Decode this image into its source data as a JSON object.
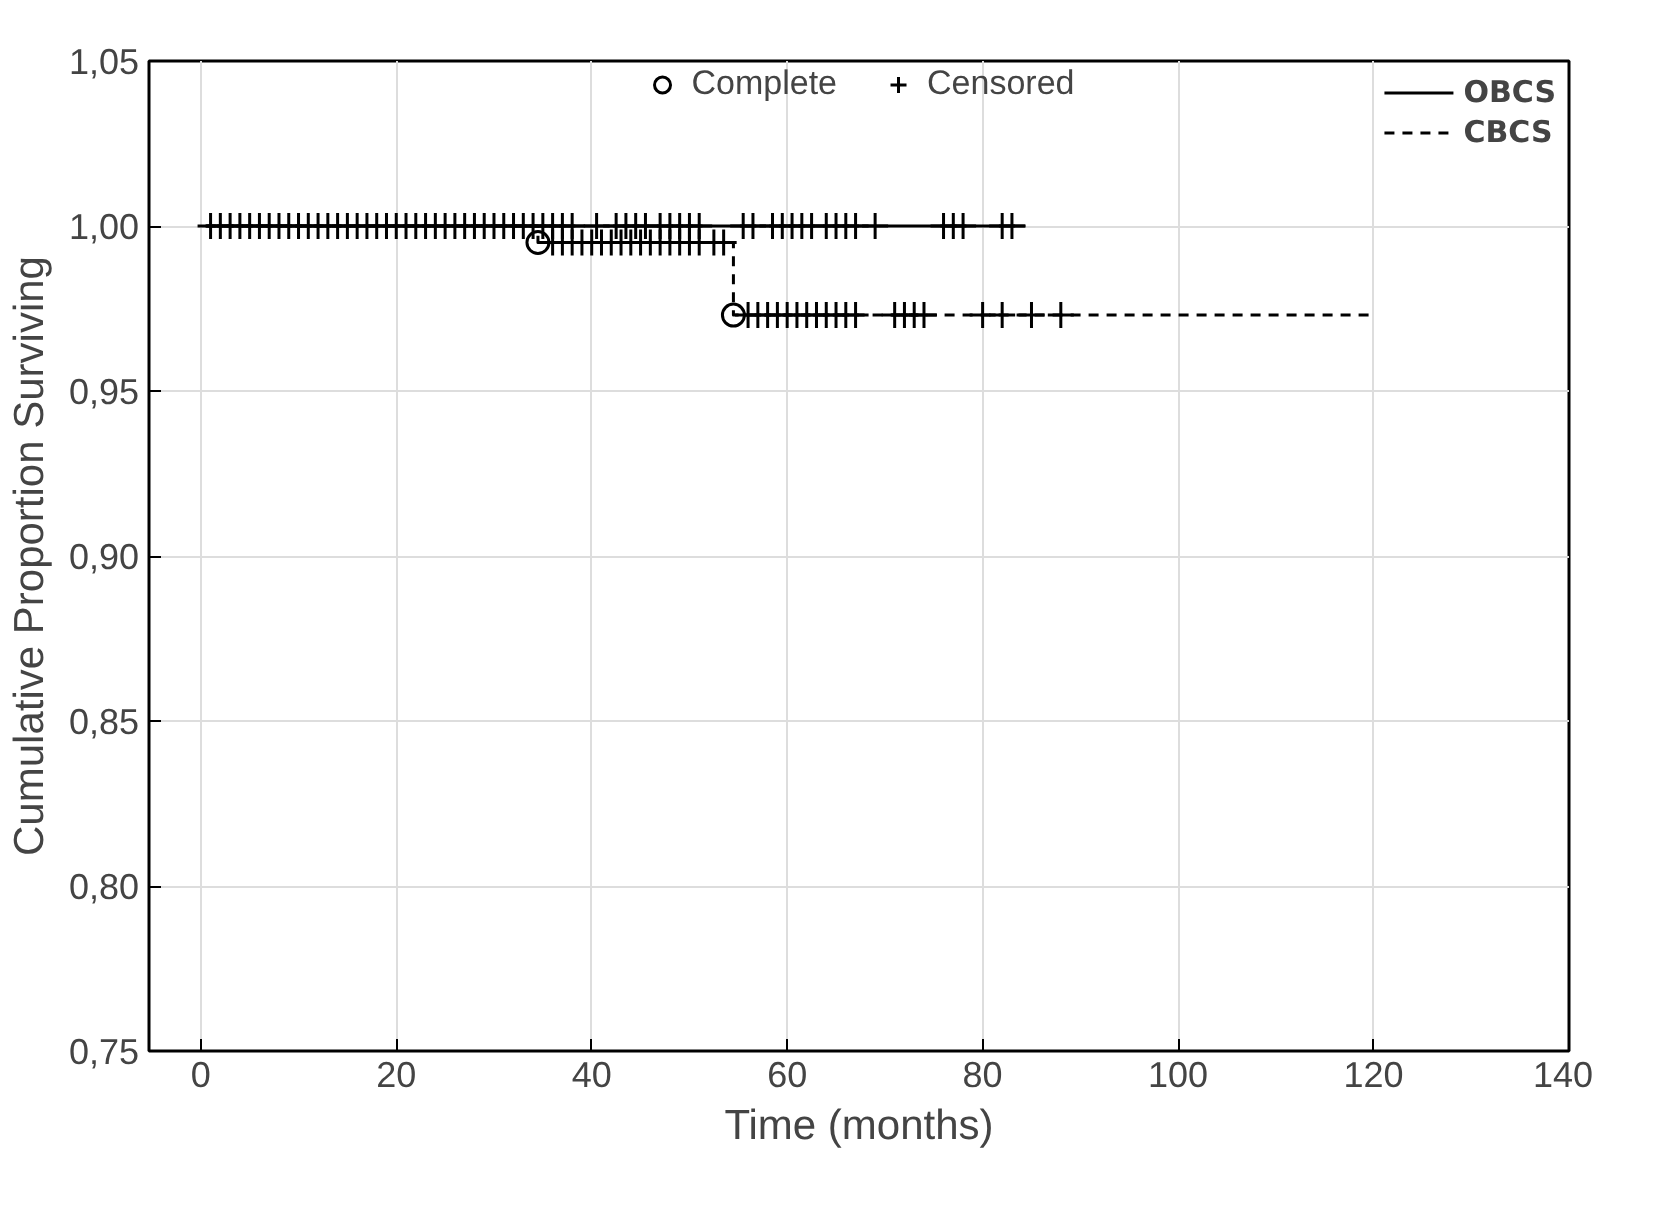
{
  "chart_data": {
    "type": "step",
    "xlabel": "Time (months)",
    "ylabel": "Cumulative Proportion Surviving",
    "xlim": [
      -5.3,
      140
    ],
    "xticks": [
      0,
      20,
      40,
      60,
      80,
      100,
      120,
      140
    ],
    "ylim": [
      0.75,
      1.05
    ],
    "yticks": [
      {
        "value": 0.75,
        "label": "0,75"
      },
      {
        "value": 0.8,
        "label": "0,80"
      },
      {
        "value": 0.85,
        "label": "0,85"
      },
      {
        "value": 0.9,
        "label": "0,90"
      },
      {
        "value": 0.95,
        "label": "0,95"
      },
      {
        "value": 1.0,
        "label": "1,00"
      },
      {
        "value": 1.05,
        "label": "1,05"
      }
    ],
    "grid": true,
    "legend": "top right",
    "series": [
      {
        "name": "OBCS",
        "color": "#000000",
        "line_style": "solid",
        "x": [
          0.5,
          84.4
        ],
        "values": [
          1.0,
          1.0
        ]
      },
      {
        "name": "CBCS",
        "color": "#000000",
        "line_style": "dashed",
        "x": [
          0.5,
          34.5,
          54.5,
          120
        ],
        "values": [
          1.0,
          0.995,
          0.973,
          0.973
        ]
      },
      {
        "name": "Complete",
        "type": "scatter",
        "marker": "circle",
        "color": "#000000",
        "x": [
          34.5,
          54.5
        ],
        "values": [
          0.995,
          0.973
        ]
      },
      {
        "name": "Censored",
        "type": "scatter",
        "marker": "cross",
        "color": "#000000",
        "x": [
          1,
          2,
          3,
          4,
          5,
          6,
          7,
          8,
          9,
          10,
          11,
          12,
          13,
          14,
          15,
          16,
          17,
          18,
          19,
          20,
          21,
          22,
          23,
          24,
          25,
          26,
          27,
          28,
          29,
          30,
          31,
          32,
          33,
          34,
          35,
          36,
          37,
          38,
          40.5,
          42.5,
          43.5,
          44.5,
          45.5,
          47,
          48,
          49,
          50,
          51,
          55.5,
          56.5,
          58.5,
          59.5,
          60.5,
          61.5,
          62.5,
          64,
          65,
          66,
          67,
          69,
          76,
          77,
          78,
          82,
          83,
          36,
          37,
          38,
          39,
          40,
          41,
          42,
          43,
          44,
          45,
          46,
          47,
          48,
          49,
          50,
          51,
          52.5,
          53.5,
          56,
          57,
          58,
          59,
          60,
          61,
          62,
          63,
          64,
          65,
          66,
          67,
          71,
          72,
          73,
          74,
          80,
          82,
          85,
          88
        ],
        "values": [
          1.0,
          1.0,
          1.0,
          1.0,
          1.0,
          1.0,
          1.0,
          1.0,
          1.0,
          1.0,
          1.0,
          1.0,
          1.0,
          1.0,
          1.0,
          1.0,
          1.0,
          1.0,
          1.0,
          1.0,
          1.0,
          1.0,
          1.0,
          1.0,
          1.0,
          1.0,
          1.0,
          1.0,
          1.0,
          1.0,
          1.0,
          1.0,
          1.0,
          1.0,
          1.0,
          1.0,
          1.0,
          1.0,
          1.0,
          1.0,
          1.0,
          1.0,
          1.0,
          1.0,
          1.0,
          1.0,
          1.0,
          1.0,
          1.0,
          1.0,
          1.0,
          1.0,
          1.0,
          1.0,
          1.0,
          1.0,
          1.0,
          1.0,
          1.0,
          1.0,
          1.0,
          1.0,
          1.0,
          1.0,
          1.0,
          0.995,
          0.995,
          0.995,
          0.995,
          0.995,
          0.995,
          0.995,
          0.995,
          0.995,
          0.995,
          0.995,
          0.995,
          0.995,
          0.995,
          0.995,
          0.995,
          0.995,
          0.995,
          0.973,
          0.973,
          0.973,
          0.973,
          0.973,
          0.973,
          0.973,
          0.973,
          0.973,
          0.973,
          0.973,
          0.973,
          0.973,
          0.973,
          0.973,
          0.973,
          0.973,
          0.973,
          0.973,
          0.973
        ]
      }
    ]
  }
}
